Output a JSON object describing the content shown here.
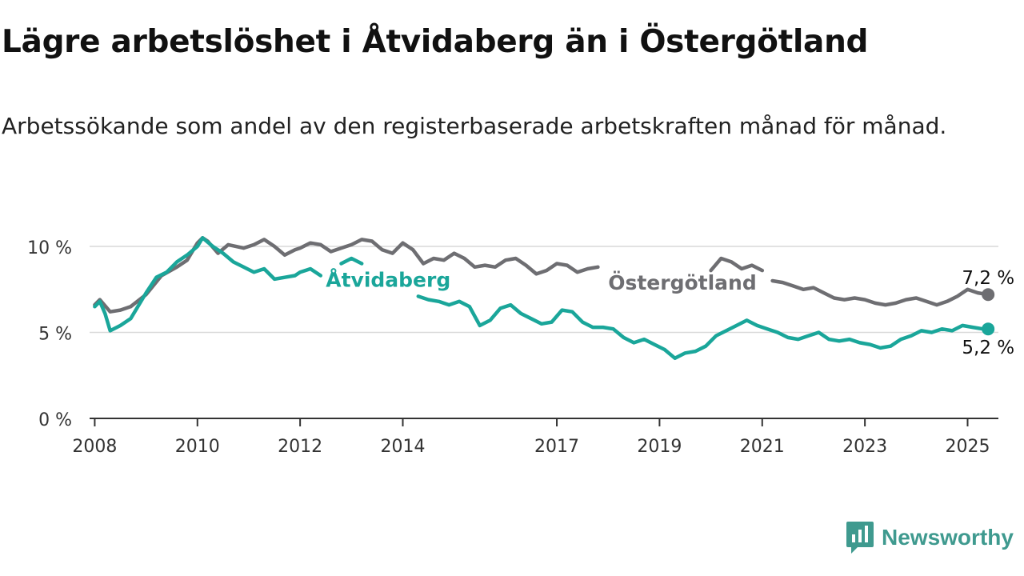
{
  "header": {
    "title": "Lägre arbetslöshet i Åtvidaberg än i Östergötland",
    "subtitle": "Arbetssökande som andel av den registerbaserade arbetskraften månad för månad."
  },
  "brand": {
    "name": "Newsworthy",
    "icon": "newsworthy-logo-icon",
    "color": "#3f9a8f"
  },
  "chart_data": {
    "type": "line",
    "title": "Lägre arbetslöshet i Åtvidaberg än i Östergötland",
    "subtitle": "Arbetssökande som andel av den registerbaserade arbetskraften månad för månad.",
    "xlabel": "",
    "ylabel": "",
    "xlim": [
      2007.9,
      2025.6
    ],
    "ylim": [
      0,
      10
    ],
    "x_ticks": [
      2008,
      2010,
      2012,
      2014,
      2017,
      2019,
      2021,
      2023,
      2025
    ],
    "y_ticks": [
      0,
      5,
      10
    ],
    "y_tick_labels": [
      "0 %",
      "5 %",
      "10 %"
    ],
    "grid": true,
    "legend": "direct labels on lines",
    "series": [
      {
        "name": "Östergötland",
        "color": "#6e6e72",
        "end_label": "7,2 %",
        "points": [
          [
            2008.0,
            6.6
          ],
          [
            2008.1,
            6.9
          ],
          [
            2008.3,
            6.2
          ],
          [
            2008.5,
            6.3
          ],
          [
            2008.7,
            6.5
          ],
          [
            2009.0,
            7.2
          ],
          [
            2009.3,
            8.3
          ],
          [
            2009.6,
            8.8
          ],
          [
            2009.8,
            9.2
          ],
          [
            2010.0,
            10.2
          ],
          [
            2010.1,
            10.5
          ],
          [
            2010.2,
            10.3
          ],
          [
            2010.4,
            9.6
          ],
          [
            2010.6,
            10.1
          ],
          [
            2010.9,
            9.9
          ],
          [
            2011.1,
            10.1
          ],
          [
            2011.3,
            10.4
          ],
          [
            2011.5,
            10.0
          ],
          [
            2011.7,
            9.5
          ],
          [
            2011.9,
            9.8
          ],
          [
            2012.0,
            9.9
          ],
          [
            2012.2,
            10.2
          ],
          [
            2012.4,
            10.1
          ],
          [
            2012.6,
            9.7
          ],
          [
            2012.8,
            9.9
          ],
          [
            2013.0,
            10.1
          ],
          [
            2013.2,
            10.4
          ],
          [
            2013.4,
            10.3
          ],
          [
            2013.6,
            9.8
          ],
          [
            2013.8,
            9.6
          ],
          [
            2014.0,
            10.2
          ],
          [
            2014.2,
            9.8
          ],
          [
            2014.4,
            9.0
          ],
          [
            2014.6,
            9.3
          ],
          [
            2014.8,
            9.2
          ],
          [
            2015.0,
            9.6
          ],
          [
            2015.2,
            9.3
          ],
          [
            2015.4,
            8.8
          ],
          [
            2015.6,
            8.9
          ],
          [
            2015.8,
            8.8
          ],
          [
            2016.0,
            9.2
          ],
          [
            2016.2,
            9.3
          ],
          [
            2016.4,
            8.9
          ],
          [
            2016.6,
            8.4
          ],
          [
            2016.8,
            8.6
          ],
          [
            2017.0,
            9.0
          ],
          [
            2017.2,
            8.9
          ],
          [
            2017.4,
            8.5
          ],
          [
            2017.6,
            8.7
          ],
          [
            2017.8,
            8.8
          ],
          [
            2018.0,
            null
          ],
          [
            2021.2,
            8.0
          ],
          [
            2021.4,
            7.9
          ],
          [
            2021.6,
            7.7
          ],
          [
            2021.8,
            7.5
          ],
          [
            2022.0,
            7.6
          ],
          [
            2022.2,
            7.3
          ],
          [
            2022.4,
            7.0
          ],
          [
            2022.6,
            6.9
          ],
          [
            2022.8,
            7.0
          ],
          [
            2023.0,
            6.9
          ],
          [
            2023.2,
            6.7
          ],
          [
            2023.4,
            6.6
          ],
          [
            2023.6,
            6.7
          ],
          [
            2023.8,
            6.9
          ],
          [
            2024.0,
            7.0
          ],
          [
            2024.2,
            6.8
          ],
          [
            2024.4,
            6.6
          ],
          [
            2024.6,
            6.8
          ],
          [
            2024.8,
            7.1
          ],
          [
            2025.0,
            7.5
          ],
          [
            2025.2,
            7.3
          ],
          [
            2025.4,
            7.2
          ]
        ]
      },
      {
        "name": "Åtvidaberg",
        "color": "#1aa69a",
        "end_label": "5,2 %",
        "points": [
          [
            2008.0,
            6.5
          ],
          [
            2008.1,
            6.8
          ],
          [
            2008.2,
            6.1
          ],
          [
            2008.3,
            5.1
          ],
          [
            2008.5,
            5.4
          ],
          [
            2008.7,
            5.8
          ],
          [
            2009.0,
            7.3
          ],
          [
            2009.2,
            8.2
          ],
          [
            2009.4,
            8.5
          ],
          [
            2009.6,
            9.1
          ],
          [
            2009.8,
            9.5
          ],
          [
            2010.0,
            10.0
          ],
          [
            2010.1,
            10.5
          ],
          [
            2010.3,
            10.0
          ],
          [
            2010.5,
            9.6
          ],
          [
            2010.7,
            9.1
          ],
          [
            2010.9,
            8.8
          ],
          [
            2011.1,
            8.5
          ],
          [
            2011.3,
            8.7
          ],
          [
            2011.5,
            8.1
          ],
          [
            2011.7,
            8.2
          ],
          [
            2011.9,
            8.3
          ],
          [
            2012.0,
            8.5
          ],
          [
            2012.2,
            8.7
          ],
          [
            2012.4,
            8.3
          ],
          [
            2012.5,
            null
          ],
          [
            2012.8,
            9.0
          ],
          [
            2013.0,
            9.3
          ],
          [
            2013.2,
            9.0
          ],
          [
            2013.3,
            null
          ],
          [
            2014.3,
            7.1
          ],
          [
            2014.5,
            6.9
          ],
          [
            2014.7,
            6.8
          ],
          [
            2014.9,
            6.6
          ],
          [
            2015.1,
            6.8
          ],
          [
            2015.3,
            6.5
          ],
          [
            2015.5,
            5.4
          ],
          [
            2015.7,
            5.7
          ],
          [
            2015.9,
            6.4
          ],
          [
            2016.1,
            6.6
          ],
          [
            2016.3,
            6.1
          ],
          [
            2016.5,
            5.8
          ],
          [
            2016.7,
            5.5
          ],
          [
            2016.9,
            5.6
          ],
          [
            2017.1,
            6.3
          ],
          [
            2017.3,
            6.2
          ],
          [
            2017.5,
            5.6
          ],
          [
            2017.7,
            5.3
          ],
          [
            2017.9,
            5.3
          ],
          [
            2018.1,
            5.2
          ],
          [
            2018.3,
            4.7
          ],
          [
            2018.5,
            4.4
          ],
          [
            2018.7,
            4.6
          ],
          [
            2018.9,
            4.3
          ],
          [
            2019.1,
            4.0
          ],
          [
            2019.3,
            3.5
          ],
          [
            2019.5,
            3.8
          ],
          [
            2019.7,
            3.9
          ],
          [
            2019.9,
            4.2
          ],
          [
            2020.1,
            4.8
          ],
          [
            2020.3,
            5.1
          ],
          [
            2020.5,
            5.4
          ],
          [
            2020.7,
            5.7
          ],
          [
            2020.9,
            5.4
          ],
          [
            2021.1,
            5.2
          ],
          [
            2021.3,
            5.0
          ],
          [
            2021.5,
            4.7
          ],
          [
            2021.7,
            4.6
          ],
          [
            2021.9,
            4.8
          ],
          [
            2022.1,
            5.0
          ],
          [
            2022.3,
            4.6
          ],
          [
            2022.5,
            4.5
          ],
          [
            2022.7,
            4.6
          ],
          [
            2022.9,
            4.4
          ],
          [
            2023.1,
            4.3
          ],
          [
            2023.3,
            4.1
          ],
          [
            2023.5,
            4.2
          ],
          [
            2023.7,
            4.6
          ],
          [
            2023.9,
            4.8
          ],
          [
            2024.1,
            5.1
          ],
          [
            2024.3,
            5.0
          ],
          [
            2024.5,
            5.2
          ],
          [
            2024.7,
            5.1
          ],
          [
            2024.9,
            5.4
          ],
          [
            2025.1,
            5.3
          ],
          [
            2025.3,
            5.2
          ],
          [
            2025.4,
            5.2
          ]
        ]
      },
      {
        "name": "",
        "color": "#6e6e72",
        "points": [
          [
            2020.0,
            8.6
          ],
          [
            2020.2,
            9.3
          ],
          [
            2020.4,
            9.1
          ],
          [
            2020.6,
            8.7
          ],
          [
            2020.8,
            8.9
          ],
          [
            2021.0,
            8.6
          ]
        ]
      }
    ]
  }
}
